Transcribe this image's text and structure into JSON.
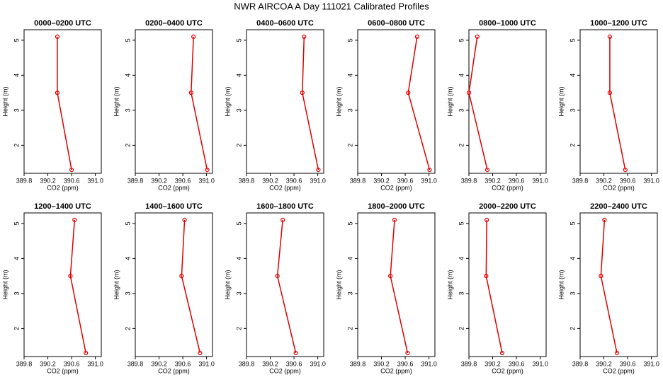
{
  "title": "NWR AIRCOA A  Day 111021  Calibrated Profiles",
  "chart_data": [
    {
      "type": "line",
      "title": "0000–0200 UTC",
      "xlabel": "CO2 (ppm)",
      "ylabel": "Height (m)",
      "color": "#e00000",
      "x": [
        390.36,
        390.36,
        390.6
      ],
      "values": [
        5.1,
        3.5,
        1.3
      ],
      "xlim": [
        389.8,
        391.1
      ],
      "ylim": [
        1.2,
        5.3
      ],
      "xticks": [
        389.8,
        390.2,
        390.6,
        {
          "value": 391,
          "label": "391.0"
        }
      ],
      "yticks": [
        2,
        3,
        4,
        5
      ]
    },
    {
      "type": "line",
      "title": "0200–0400 UTC",
      "xlabel": "CO2 (ppm)",
      "ylabel": "Height (m)",
      "color": "#e00000",
      "x": [
        390.78,
        390.74,
        391.01
      ],
      "values": [
        5.1,
        3.5,
        1.3
      ],
      "xlim": [
        389.8,
        391.1
      ],
      "ylim": [
        1.2,
        5.3
      ],
      "xticks": [
        389.8,
        390.2,
        390.6,
        {
          "value": 391,
          "label": "391.0"
        }
      ],
      "yticks": [
        2,
        3,
        4,
        5
      ]
    },
    {
      "type": "line",
      "title": "0400–0600 UTC",
      "xlabel": "CO2 (ppm)",
      "ylabel": "Height (m)",
      "color": "#e00000",
      "x": [
        390.77,
        390.74,
        391.01
      ],
      "values": [
        5.1,
        3.5,
        1.3
      ],
      "xlim": [
        389.8,
        391.1
      ],
      "ylim": [
        1.2,
        5.3
      ],
      "xticks": [
        389.8,
        390.2,
        390.6,
        {
          "value": 391,
          "label": "391.0"
        }
      ],
      "yticks": [
        2,
        3,
        4,
        5
      ]
    },
    {
      "type": "line",
      "title": "0600–0800 UTC",
      "xlabel": "CO2 (ppm)",
      "ylabel": "Height (m)",
      "color": "#e00000",
      "x": [
        390.8,
        390.65,
        391.01
      ],
      "values": [
        5.1,
        3.5,
        1.3
      ],
      "xlim": [
        389.8,
        391.1
      ],
      "ylim": [
        1.2,
        5.3
      ],
      "xticks": [
        389.8,
        390.2,
        390.6,
        {
          "value": 391,
          "label": "391.0"
        }
      ],
      "yticks": [
        2,
        3,
        4,
        5
      ]
    },
    {
      "type": "line",
      "title": "0800–1000 UTC",
      "xlabel": "CO2 (ppm)",
      "ylabel": "Height (m)",
      "color": "#e00000",
      "x": [
        389.94,
        389.8,
        390.11
      ],
      "values": [
        5.1,
        3.5,
        1.3
      ],
      "xlim": [
        389.8,
        391.1
      ],
      "ylim": [
        1.2,
        5.3
      ],
      "xticks": [
        389.8,
        390.2,
        390.6,
        {
          "value": 391,
          "label": "391.0"
        }
      ],
      "yticks": [
        2,
        3,
        4,
        5
      ]
    },
    {
      "type": "line",
      "title": "1000–1200 UTC",
      "xlabel": "CO2 (ppm)",
      "ylabel": "Height (m)",
      "color": "#e00000",
      "x": [
        390.3,
        390.3,
        390.56
      ],
      "values": [
        5.1,
        3.5,
        1.3
      ],
      "xlim": [
        389.8,
        391.1
      ],
      "ylim": [
        1.2,
        5.3
      ],
      "xticks": [
        389.8,
        390.2,
        390.6,
        {
          "value": 391,
          "label": "391.0"
        }
      ],
      "yticks": [
        2,
        3,
        4,
        5
      ]
    },
    {
      "type": "line",
      "title": "1200–1400 UTC",
      "xlabel": "CO2 (ppm)",
      "ylabel": "Height (m)",
      "color": "#e00000",
      "x": [
        390.65,
        390.58,
        390.84
      ],
      "values": [
        5.1,
        3.5,
        1.3
      ],
      "xlim": [
        389.8,
        391.1
      ],
      "ylim": [
        1.2,
        5.3
      ],
      "xticks": [
        389.8,
        390.2,
        390.6,
        {
          "value": 391,
          "label": "391.0"
        }
      ],
      "yticks": [
        2,
        3,
        4,
        5
      ]
    },
    {
      "type": "line",
      "title": "1400–1600 UTC",
      "xlabel": "CO2 (ppm)",
      "ylabel": "Height (m)",
      "color": "#e00000",
      "x": [
        390.63,
        390.58,
        390.89
      ],
      "values": [
        5.1,
        3.5,
        1.3
      ],
      "xlim": [
        389.8,
        391.1
      ],
      "ylim": [
        1.2,
        5.3
      ],
      "xticks": [
        389.8,
        390.2,
        390.6,
        {
          "value": 391,
          "label": "391.0"
        }
      ],
      "yticks": [
        2,
        3,
        4,
        5
      ]
    },
    {
      "type": "line",
      "title": "1600–1800 UTC",
      "xlabel": "CO2 (ppm)",
      "ylabel": "Height (m)",
      "color": "#e00000",
      "x": [
        390.41,
        390.32,
        390.63
      ],
      "values": [
        5.1,
        3.5,
        1.3
      ],
      "xlim": [
        389.8,
        391.1
      ],
      "ylim": [
        1.2,
        5.3
      ],
      "xticks": [
        389.8,
        390.2,
        390.6,
        {
          "value": 391,
          "label": "391.0"
        }
      ],
      "yticks": [
        2,
        3,
        4,
        5
      ]
    },
    {
      "type": "line",
      "title": "1800–2000 UTC",
      "xlabel": "CO2 (ppm)",
      "ylabel": "Height (m)",
      "color": "#e00000",
      "x": [
        390.42,
        390.35,
        390.64
      ],
      "values": [
        5.1,
        3.5,
        1.3
      ],
      "xlim": [
        389.8,
        391.1
      ],
      "ylim": [
        1.2,
        5.3
      ],
      "xticks": [
        389.8,
        390.2,
        390.6,
        {
          "value": 391,
          "label": "391.0"
        }
      ],
      "yticks": [
        2,
        3,
        4,
        5
      ]
    },
    {
      "type": "line",
      "title": "2000–2200 UTC",
      "xlabel": "CO2 (ppm)",
      "ylabel": "Height (m)",
      "color": "#e00000",
      "x": [
        390.1,
        390.09,
        390.36
      ],
      "values": [
        5.1,
        3.5,
        1.3
      ],
      "xlim": [
        389.8,
        391.1
      ],
      "ylim": [
        1.2,
        5.3
      ],
      "xticks": [
        389.8,
        390.2,
        390.6,
        {
          "value": 391,
          "label": "391.0"
        }
      ],
      "yticks": [
        2,
        3,
        4,
        5
      ]
    },
    {
      "type": "line",
      "title": "2200–2400 UTC",
      "xlabel": "CO2 (ppm)",
      "ylabel": "Height (m)",
      "color": "#e00000",
      "x": [
        390.21,
        390.15,
        390.42
      ],
      "values": [
        5.1,
        3.5,
        1.3
      ],
      "xlim": [
        389.8,
        391.1
      ],
      "ylim": [
        1.2,
        5.3
      ],
      "xticks": [
        389.8,
        390.2,
        390.6,
        {
          "value": 391,
          "label": "391.0"
        }
      ],
      "yticks": [
        2,
        3,
        4,
        5
      ]
    }
  ]
}
